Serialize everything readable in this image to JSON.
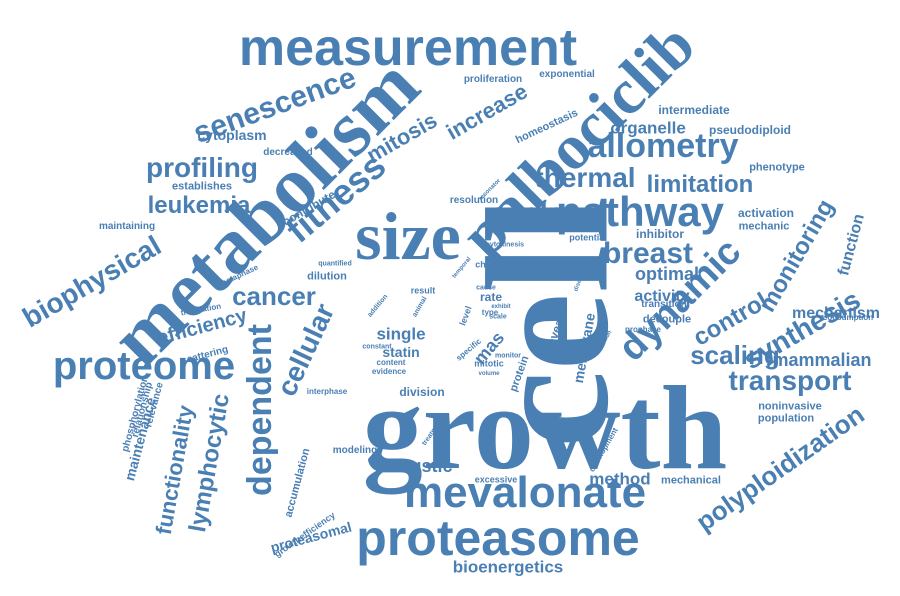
{
  "word_cloud": {
    "accent_color": "#4a7fb3",
    "background_color": "#ffffff",
    "words": [
      {
        "text": "cell"
      },
      {
        "text": "growth"
      },
      {
        "text": "size"
      },
      {
        "text": "metabolism"
      },
      {
        "text": "palbociclib"
      },
      {
        "text": "measurement"
      },
      {
        "text": "mevalonate"
      },
      {
        "text": "proteasome"
      },
      {
        "text": "proteome"
      },
      {
        "text": "dynamic"
      },
      {
        "text": "pathway"
      },
      {
        "text": "dependent"
      },
      {
        "text": "fitness"
      },
      {
        "text": "cellular"
      },
      {
        "text": "lymphocytic"
      },
      {
        "text": "functionality"
      },
      {
        "text": "senescence"
      },
      {
        "text": "allometry"
      },
      {
        "text": "biophysical"
      },
      {
        "text": "thermal"
      },
      {
        "text": "limitation"
      },
      {
        "text": "cycle"
      },
      {
        "text": "profiling"
      },
      {
        "text": "mitosis"
      },
      {
        "text": "increase"
      },
      {
        "text": "cancer"
      },
      {
        "text": "leukemia"
      },
      {
        "text": "breast"
      },
      {
        "text": "monitoring"
      },
      {
        "text": "synthesis"
      },
      {
        "text": "control"
      },
      {
        "text": "scaling"
      },
      {
        "text": "transport"
      },
      {
        "text": "polyploidization"
      },
      {
        "text": "mammalian"
      },
      {
        "text": "mechanism"
      },
      {
        "text": "function"
      },
      {
        "text": "efficiency"
      },
      {
        "text": "cytoplasm"
      },
      {
        "text": "organelle"
      },
      {
        "text": "optimal"
      },
      {
        "text": "activity"
      },
      {
        "text": "acoustic"
      },
      {
        "text": "method"
      },
      {
        "text": "bioenergetics"
      },
      {
        "text": "proteasomal"
      },
      {
        "text": "maintenance"
      },
      {
        "text": "single"
      },
      {
        "text": "mas"
      },
      {
        "text": "membrane"
      },
      {
        "text": "statin"
      },
      {
        "text": "protein"
      },
      {
        "text": "reveal"
      },
      {
        "text": "homeostasis"
      },
      {
        "text": "intermediate"
      },
      {
        "text": "pseudodiploid"
      },
      {
        "text": "proliferation"
      },
      {
        "text": "exponential"
      },
      {
        "text": "decreased"
      },
      {
        "text": "establishes"
      },
      {
        "text": "maintaining"
      },
      {
        "text": "contribute"
      },
      {
        "text": "resolution"
      },
      {
        "text": "inhibitor"
      },
      {
        "text": "activation"
      },
      {
        "text": "mechanic"
      },
      {
        "text": "phenotype"
      },
      {
        "text": "potential"
      },
      {
        "text": "dilution"
      },
      {
        "text": "quantified"
      },
      {
        "text": "metaphase"
      },
      {
        "text": "translation"
      },
      {
        "text": "scattering"
      },
      {
        "text": "change"
      },
      {
        "text": "result"
      },
      {
        "text": "rate"
      },
      {
        "text": "type"
      },
      {
        "text": "decouple"
      },
      {
        "text": "transition"
      },
      {
        "text": "prophase"
      },
      {
        "text": "division"
      },
      {
        "text": "interphase"
      },
      {
        "text": "phosphorylation"
      },
      {
        "text": "relationship"
      },
      {
        "text": "relevance"
      },
      {
        "text": "accumulation"
      },
      {
        "text": "growthefficiency"
      },
      {
        "text": "modeling"
      },
      {
        "text": "excessive"
      },
      {
        "text": "mechanical"
      },
      {
        "text": "noninvasive"
      },
      {
        "text": "population"
      },
      {
        "text": "consumption"
      },
      {
        "text": "development"
      },
      {
        "text": "treatment"
      },
      {
        "text": "mitotic"
      },
      {
        "text": "volume"
      },
      {
        "text": "specific"
      },
      {
        "text": "evidence"
      },
      {
        "text": "content"
      },
      {
        "text": "constant"
      },
      {
        "text": "cytokinesis"
      },
      {
        "text": "resonator"
      },
      {
        "text": "maximal"
      },
      {
        "text": "primary"
      },
      {
        "text": "disease"
      },
      {
        "text": "level"
      },
      {
        "text": "cause"
      },
      {
        "text": "scale"
      },
      {
        "text": "monitor"
      },
      {
        "text": "addition"
      },
      {
        "text": "animal"
      },
      {
        "text": "temporal"
      },
      {
        "text": "exhibit"
      },
      {
        "text": "inhibition"
      }
    ]
  }
}
